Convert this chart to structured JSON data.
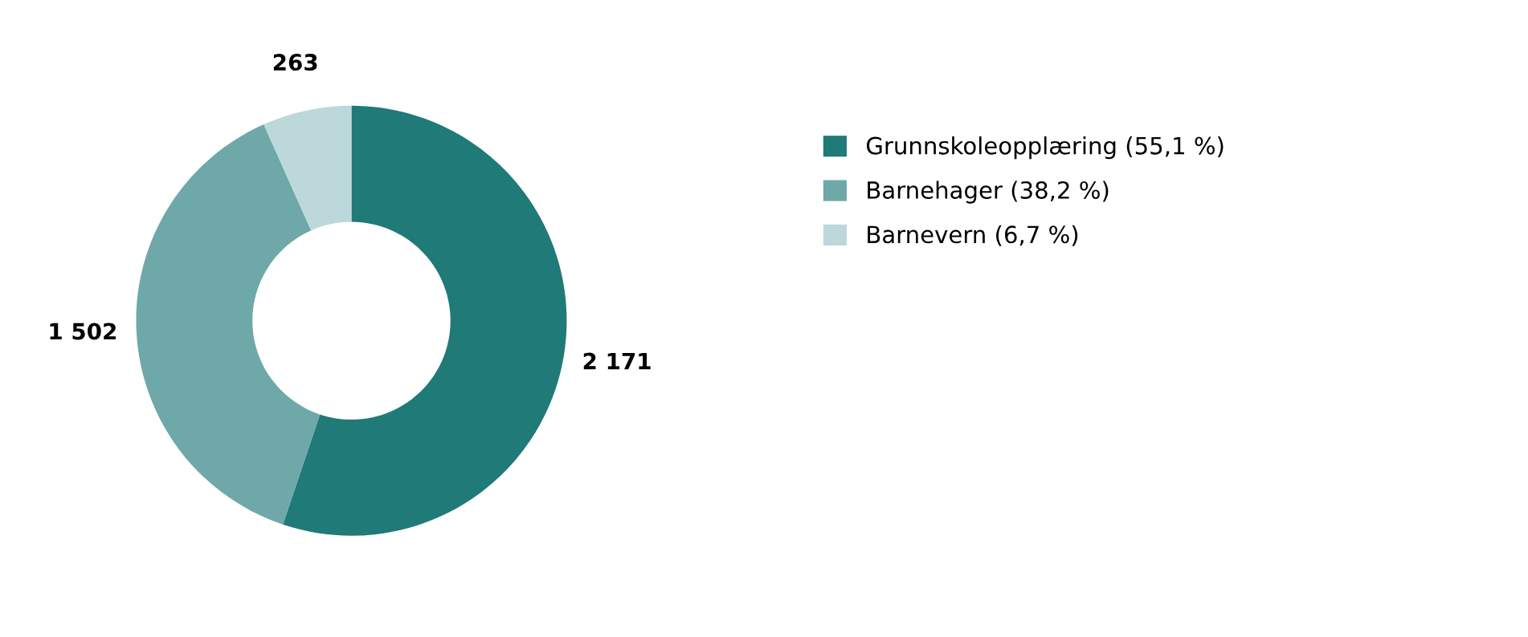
{
  "chart_data": {
    "type": "donut",
    "categories": [
      "Grunnskoleopplæring (55,1 %)",
      "Barnehager (38,2 %)",
      "Barnevern (6,7 %)"
    ],
    "values": [
      2171,
      1502,
      263
    ],
    "value_labels": [
      "2 171",
      "1 502",
      "263"
    ],
    "colors": [
      "#1f7a78",
      "#6fa8a8",
      "#bcd8da"
    ],
    "legend": "right"
  }
}
